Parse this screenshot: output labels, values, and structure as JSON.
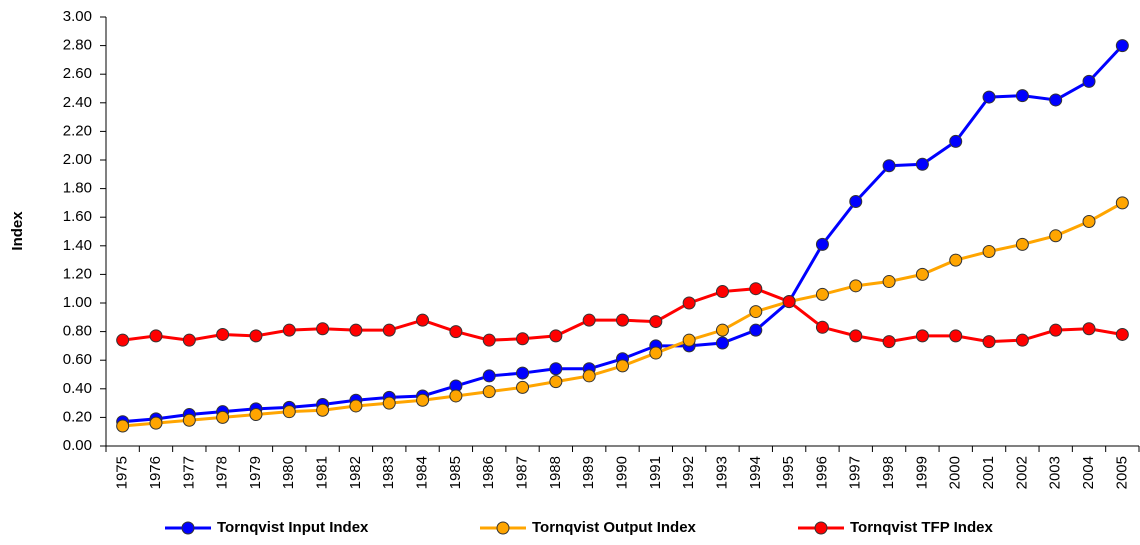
{
  "chart_data": {
    "type": "line",
    "y_label": "Index",
    "categories": [
      "1975",
      "1976",
      "1977",
      "1978",
      "1979",
      "1980",
      "1981",
      "1982",
      "1983",
      "1984",
      "1985",
      "1986",
      "1987",
      "1988",
      "1989",
      "1990",
      "1991",
      "1992",
      "1993",
      "1994",
      "1995",
      "1996",
      "1997",
      "1998",
      "1999",
      "2000",
      "2001",
      "2002",
      "2003",
      "2004",
      "2005"
    ],
    "series": [
      {
        "name": "Tornqvist Input Index",
        "color": "#0000ff",
        "values": [
          0.17,
          0.19,
          0.22,
          0.24,
          0.26,
          0.27,
          0.29,
          0.32,
          0.34,
          0.35,
          0.42,
          0.49,
          0.51,
          0.54,
          0.54,
          0.61,
          0.7,
          0.7,
          0.72,
          0.81,
          1.01,
          1.41,
          1.71,
          1.96,
          1.97,
          2.13,
          2.44,
          2.45,
          2.42,
          2.55,
          2.8
        ]
      },
      {
        "name": "Tornqvist Output Index",
        "color": "#ffa500",
        "values": [
          0.14,
          0.16,
          0.18,
          0.2,
          0.22,
          0.24,
          0.25,
          0.28,
          0.3,
          0.32,
          0.35,
          0.38,
          0.41,
          0.45,
          0.49,
          0.56,
          0.65,
          0.74,
          0.81,
          0.94,
          1.01,
          1.06,
          1.12,
          1.15,
          1.2,
          1.3,
          1.36,
          1.41,
          1.47,
          1.57,
          1.7
        ]
      },
      {
        "name": "Tornqvist TFP Index",
        "color": "#ff0000",
        "values": [
          0.74,
          0.77,
          0.74,
          0.78,
          0.77,
          0.81,
          0.82,
          0.81,
          0.81,
          0.88,
          0.8,
          0.74,
          0.75,
          0.77,
          0.88,
          0.88,
          0.87,
          1.0,
          1.08,
          1.1,
          1.01,
          0.83,
          0.77,
          0.73,
          0.77,
          0.77,
          0.73,
          0.74,
          0.81,
          0.82,
          0.78
        ]
      }
    ],
    "ylim": [
      0,
      3
    ],
    "yticks": [
      {
        "value": 0,
        "label": "0.00"
      },
      {
        "value": 0.2,
        "label": "0.20"
      },
      {
        "value": 0.4,
        "label": "0.40"
      },
      {
        "value": 0.6,
        "label": "0.60"
      },
      {
        "value": 0.8,
        "label": "0.80"
      },
      {
        "value": 1,
        "label": "1.00"
      },
      {
        "value": 1.2,
        "label": "1.20"
      },
      {
        "value": 1.4,
        "label": "1.40"
      },
      {
        "value": 1.6,
        "label": "1.60"
      },
      {
        "value": 1.8,
        "label": "1.80"
      },
      {
        "value": 2,
        "label": "2.00"
      },
      {
        "value": 2.2,
        "label": "2.20"
      },
      {
        "value": 2.4,
        "label": "2.40"
      },
      {
        "value": 2.6,
        "label": "2.60"
      },
      {
        "value": 2.8,
        "label": "2.80"
      },
      {
        "value": 3,
        "label": "3.00"
      }
    ],
    "grid": false,
    "legend": "bottom"
  }
}
